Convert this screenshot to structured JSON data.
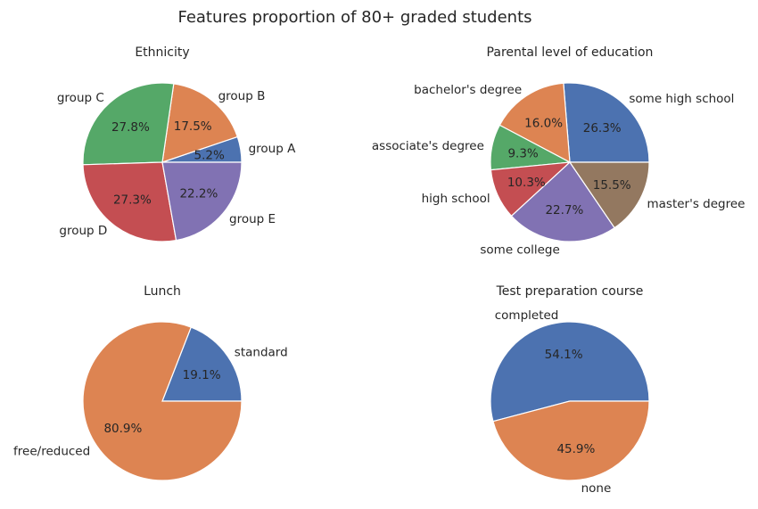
{
  "suptitle": "Features proportion of 80+ graded students",
  "chart_data": [
    {
      "type": "pie",
      "title": "Ethnicity",
      "labels": [
        "group A",
        "group B",
        "group C",
        "group D",
        "group E"
      ],
      "values": [
        5.2,
        17.5,
        27.8,
        27.3,
        22.2
      ],
      "pct_labels": [
        "5.2%",
        "17.5%",
        "27.8%",
        "27.3%",
        "22.2%"
      ],
      "colors": [
        "#4c72b0",
        "#dd8452",
        "#55a868",
        "#c44e52",
        "#8172b3"
      ]
    },
    {
      "type": "pie",
      "title": "Parental level of education",
      "labels": [
        "some high school",
        "bachelor's degree",
        "associate's degree",
        "high school",
        "some college",
        "master's degree"
      ],
      "values": [
        26.3,
        16.0,
        9.3,
        10.3,
        22.7,
        15.5
      ],
      "pct_labels": [
        "26.3%",
        "16.0%",
        "9.3%",
        "10.3%",
        "22.7%",
        "15.5%"
      ],
      "colors": [
        "#4c72b0",
        "#dd8452",
        "#55a868",
        "#c44e52",
        "#8172b3",
        "#937860"
      ]
    },
    {
      "type": "pie",
      "title": "Lunch",
      "labels": [
        "standard",
        "free/reduced"
      ],
      "values": [
        19.1,
        80.9
      ],
      "pct_labels": [
        "19.1%",
        "80.9%"
      ],
      "colors": [
        "#4c72b0",
        "#dd8452"
      ]
    },
    {
      "type": "pie",
      "title": "Test preparation course",
      "labels": [
        "completed",
        "none"
      ],
      "values": [
        54.1,
        45.9
      ],
      "pct_labels": [
        "54.1%",
        "45.9%"
      ],
      "colors": [
        "#4c72b0",
        "#dd8452"
      ]
    }
  ]
}
